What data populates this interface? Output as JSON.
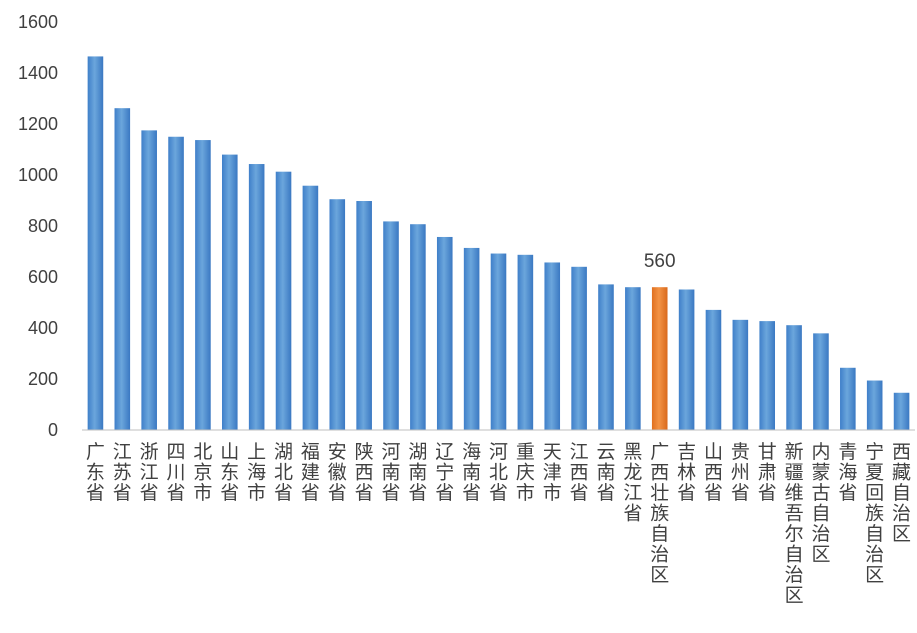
{
  "chart_data": {
    "type": "bar",
    "categories": [
      "广东省",
      "江苏省",
      "浙江省",
      "四川省",
      "北京市",
      "山东省",
      "上海市",
      "湖北省",
      "福建省",
      "安徽省",
      "陕西省",
      "河南省",
      "湖南省",
      "辽宁省",
      "海南省",
      "河北省",
      "重庆市",
      "天津市",
      "江西省",
      "云南省",
      "黑龙江省",
      "广西壮族自治区",
      "吉林省",
      "山西省",
      "贵州省",
      "甘肃省",
      "新疆维吾尔自治区",
      "内蒙古自治区",
      "青海省",
      "宁夏回族自治区",
      "西藏自治区"
    ],
    "values": [
      1465,
      1262,
      1175,
      1150,
      1137,
      1080,
      1043,
      1013,
      958,
      905,
      898,
      818,
      807,
      757,
      714,
      692,
      687,
      657,
      640,
      571,
      560,
      560,
      551,
      471,
      432,
      427,
      411,
      379,
      244,
      194,
      146
    ],
    "highlight_index": 21,
    "data_labels": [
      {
        "index": 21,
        "text": "560"
      }
    ],
    "ylim": [
      0,
      1600
    ],
    "yticks": [
      0,
      200,
      400,
      600,
      800,
      1000,
      1200,
      1400,
      1600
    ],
    "title": "",
    "xlabel": "",
    "ylabel": "",
    "grid": false,
    "legend": "none",
    "colors": {
      "bar": "#5b9bd5",
      "bar_dark": "#3a78c2",
      "highlight": "#ed7d31",
      "axis": "#bfbfbf",
      "text": "#404040"
    }
  }
}
